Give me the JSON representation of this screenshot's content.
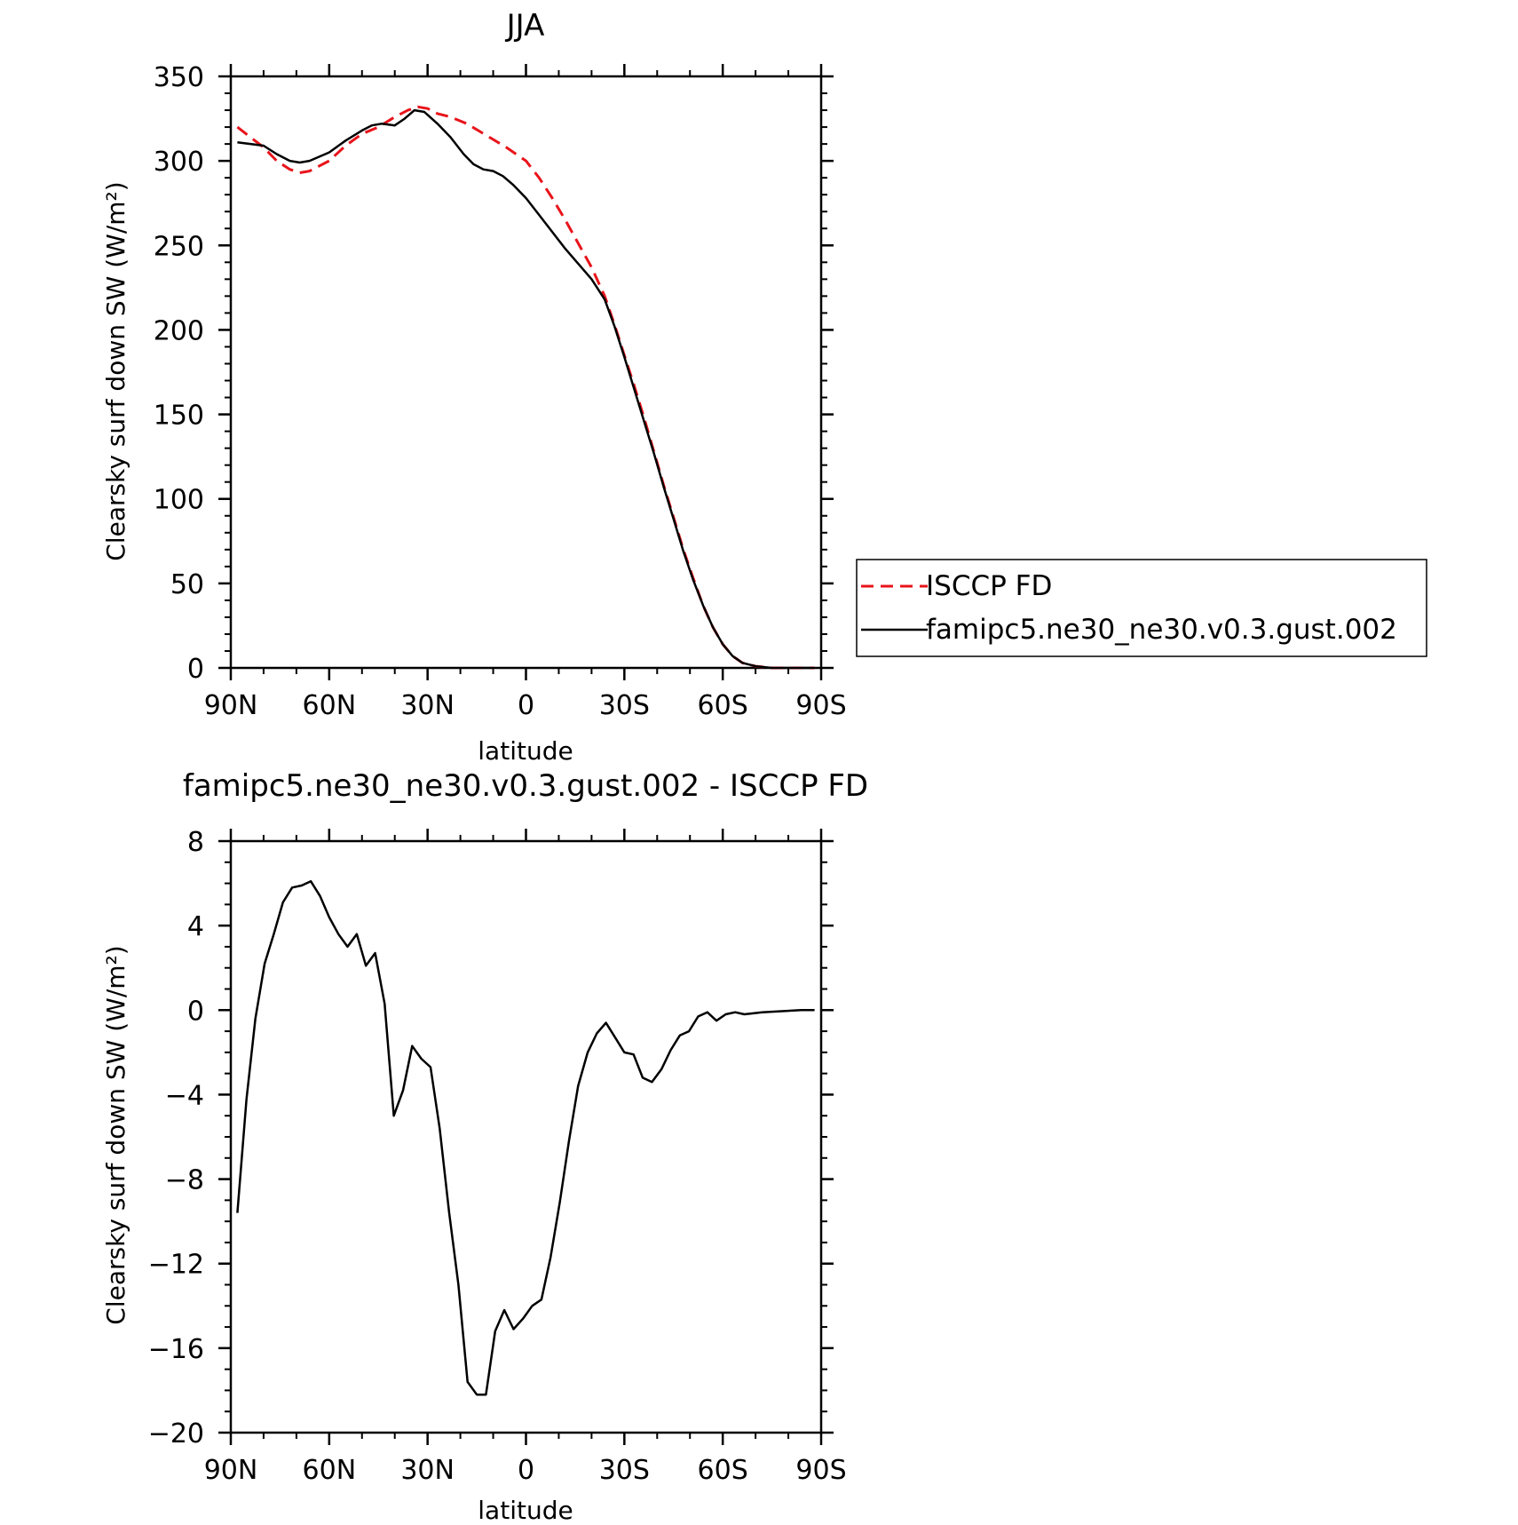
{
  "chart_data": [
    {
      "type": "line",
      "title": "JJA",
      "xlabel": "latitude",
      "ylabel": "Clearsky surf down SW (W/m²)",
      "xlim": [
        90,
        -90
      ],
      "ylim": [
        0,
        350
      ],
      "x_ticks": [
        {
          "value": 90,
          "label": "90N"
        },
        {
          "value": 60,
          "label": "60N"
        },
        {
          "value": 30,
          "label": "30N"
        },
        {
          "value": 0,
          "label": "0"
        },
        {
          "value": -30,
          "label": "30S"
        },
        {
          "value": -60,
          "label": "60S"
        },
        {
          "value": -90,
          "label": "90S"
        }
      ],
      "y_ticks": [
        {
          "value": 0,
          "label": "0"
        },
        {
          "value": 50,
          "label": "50"
        },
        {
          "value": 100,
          "label": "100"
        },
        {
          "value": 150,
          "label": "150"
        },
        {
          "value": 200,
          "label": "200"
        },
        {
          "value": 250,
          "label": "250"
        },
        {
          "value": 300,
          "label": "300"
        },
        {
          "value": 350,
          "label": "350"
        }
      ],
      "grid": false,
      "legend": "right",
      "series": [
        {
          "name": "ISCCP FD",
          "color": "#e8141b",
          "dash": "dashed",
          "points": [
            [
              88,
              320
            ],
            [
              84,
              314
            ],
            [
              80,
              308
            ],
            [
              76,
              300
            ],
            [
              72,
              295
            ],
            [
              69,
              293
            ],
            [
              66,
              294
            ],
            [
              60,
              300
            ],
            [
              55,
              309
            ],
            [
              50,
              316
            ],
            [
              45,
              320
            ],
            [
              40,
              326
            ],
            [
              36,
              330
            ],
            [
              33,
              332
            ],
            [
              30,
              331
            ],
            [
              27,
              328
            ],
            [
              23,
              326
            ],
            [
              18,
              322
            ],
            [
              12,
              315
            ],
            [
              6,
              308
            ],
            [
              0,
              300
            ],
            [
              -4,
              290
            ],
            [
              -8,
              278
            ],
            [
              -12,
              265
            ],
            [
              -16,
              251
            ],
            [
              -20,
              237
            ],
            [
              -24,
              220
            ],
            [
              -27,
              203
            ],
            [
              -30,
              185
            ],
            [
              -33,
              167
            ],
            [
              -36,
              148
            ],
            [
              -39,
              128
            ],
            [
              -42,
              108
            ],
            [
              -45,
              89
            ],
            [
              -48,
              70
            ],
            [
              -51,
              53
            ],
            [
              -54,
              37
            ],
            [
              -57,
              24
            ],
            [
              -60,
              14
            ],
            [
              -63,
              7
            ],
            [
              -66,
              3
            ],
            [
              -70,
              1
            ],
            [
              -75,
              0
            ],
            [
              -80,
              0
            ],
            [
              -85,
              0
            ],
            [
              -88,
              0
            ]
          ]
        },
        {
          "name": "famipc5.ne30_ne30.v0.3.gust.002",
          "color": "#000000",
          "dash": "solid",
          "points": [
            [
              88,
              311
            ],
            [
              84,
              310
            ],
            [
              80,
              309
            ],
            [
              76,
              304
            ],
            [
              72,
              300
            ],
            [
              69,
              299
            ],
            [
              66,
              300
            ],
            [
              60,
              305
            ],
            [
              55,
              312
            ],
            [
              50,
              318
            ],
            [
              47,
              321
            ],
            [
              44,
              322
            ],
            [
              40,
              321
            ],
            [
              37,
              325
            ],
            [
              34,
              330
            ],
            [
              31,
              329
            ],
            [
              27,
              322
            ],
            [
              23,
              314
            ],
            [
              19,
              304
            ],
            [
              16,
              298
            ],
            [
              13,
              295
            ],
            [
              10,
              294
            ],
            [
              7,
              291
            ],
            [
              4,
              286
            ],
            [
              0,
              278
            ],
            [
              -4,
              268
            ],
            [
              -8,
              258
            ],
            [
              -12,
              248
            ],
            [
              -16,
              239
            ],
            [
              -20,
              230
            ],
            [
              -24,
              218
            ],
            [
              -27,
              202
            ],
            [
              -30,
              184
            ],
            [
              -33,
              165
            ],
            [
              -36,
              146
            ],
            [
              -39,
              127
            ],
            [
              -42,
              107
            ],
            [
              -45,
              88
            ],
            [
              -48,
              69
            ],
            [
              -51,
              52
            ],
            [
              -54,
              37
            ],
            [
              -57,
              24
            ],
            [
              -60,
              14
            ],
            [
              -63,
              7
            ],
            [
              -66,
              3
            ],
            [
              -70,
              1
            ],
            [
              -75,
              0
            ],
            [
              -80,
              0
            ],
            [
              -85,
              0
            ],
            [
              -88,
              0
            ]
          ]
        }
      ]
    },
    {
      "type": "line",
      "title": "famipc5.ne30_ne30.v0.3.gust.002 - ISCCP FD",
      "xlabel": "latitude",
      "ylabel": "Clearsky surf down SW (W/m²)",
      "xlim": [
        90,
        -90
      ],
      "ylim": [
        -20,
        8
      ],
      "x_ticks": [
        {
          "value": 90,
          "label": "90N"
        },
        {
          "value": 60,
          "label": "60N"
        },
        {
          "value": 30,
          "label": "30N"
        },
        {
          "value": 0,
          "label": "0"
        },
        {
          "value": -30,
          "label": "30S"
        },
        {
          "value": -60,
          "label": "60S"
        },
        {
          "value": -90,
          "label": "90S"
        }
      ],
      "y_ticks": [
        {
          "value": -20,
          "label": "−20"
        },
        {
          "value": -16,
          "label": "−16"
        },
        {
          "value": -12,
          "label": "−12"
        },
        {
          "value": -8,
          "label": "−8"
        },
        {
          "value": -4,
          "label": "−4"
        },
        {
          "value": 0,
          "label": "0"
        },
        {
          "value": 4,
          "label": "4"
        },
        {
          "value": 8,
          "label": "8"
        }
      ],
      "grid": false,
      "series": [
        {
          "color": "#000000",
          "dash": "solid",
          "points": [
            [
              88,
              -9.6
            ],
            [
              85.2,
              -4.2
            ],
            [
              82.5,
              -0.4
            ],
            [
              79.7,
              2.2
            ],
            [
              76.9,
              3.6
            ],
            [
              74.1,
              5.1
            ],
            [
              71.3,
              5.8
            ],
            [
              68.4,
              5.9
            ],
            [
              65.6,
              6.1
            ],
            [
              62.8,
              5.4
            ],
            [
              60.0,
              4.4
            ],
            [
              57.2,
              3.6
            ],
            [
              54.4,
              3.0
            ],
            [
              51.6,
              3.6
            ],
            [
              48.8,
              2.1
            ],
            [
              46.0,
              2.7
            ],
            [
              43.1,
              0.3
            ],
            [
              40.3,
              -5.0
            ],
            [
              37.5,
              -3.8
            ],
            [
              34.7,
              -1.7
            ],
            [
              31.9,
              -2.3
            ],
            [
              29.1,
              -2.7
            ],
            [
              26.3,
              -5.6
            ],
            [
              23.4,
              -9.6
            ],
            [
              20.6,
              -13.0
            ],
            [
              17.8,
              -17.6
            ],
            [
              15.0,
              -18.2
            ],
            [
              12.2,
              -18.2
            ],
            [
              9.4,
              -15.2
            ],
            [
              6.6,
              -14.2
            ],
            [
              3.8,
              -15.1
            ],
            [
              0.9,
              -14.6
            ],
            [
              -1.9,
              -14.0
            ],
            [
              -4.7,
              -13.7
            ],
            [
              -7.5,
              -11.7
            ],
            [
              -10.3,
              -9.1
            ],
            [
              -13.1,
              -6.2
            ],
            [
              -15.9,
              -3.6
            ],
            [
              -18.8,
              -2.0
            ],
            [
              -21.6,
              -1.1
            ],
            [
              -24.4,
              -0.6
            ],
            [
              -27.2,
              -1.3
            ],
            [
              -30.0,
              -2.0
            ],
            [
              -32.8,
              -2.1
            ],
            [
              -35.6,
              -3.2
            ],
            [
              -38.4,
              -3.4
            ],
            [
              -41.3,
              -2.8
            ],
            [
              -44.1,
              -1.9
            ],
            [
              -46.9,
              -1.2
            ],
            [
              -49.7,
              -1.0
            ],
            [
              -52.5,
              -0.3
            ],
            [
              -55.3,
              -0.1
            ],
            [
              -58.1,
              -0.5
            ],
            [
              -60.9,
              -0.2
            ],
            [
              -63.8,
              -0.1
            ],
            [
              -66.6,
              -0.2
            ],
            [
              -72,
              -0.1
            ],
            [
              -78,
              -0.05
            ],
            [
              -84,
              0
            ],
            [
              -88,
              0
            ]
          ]
        }
      ]
    }
  ]
}
